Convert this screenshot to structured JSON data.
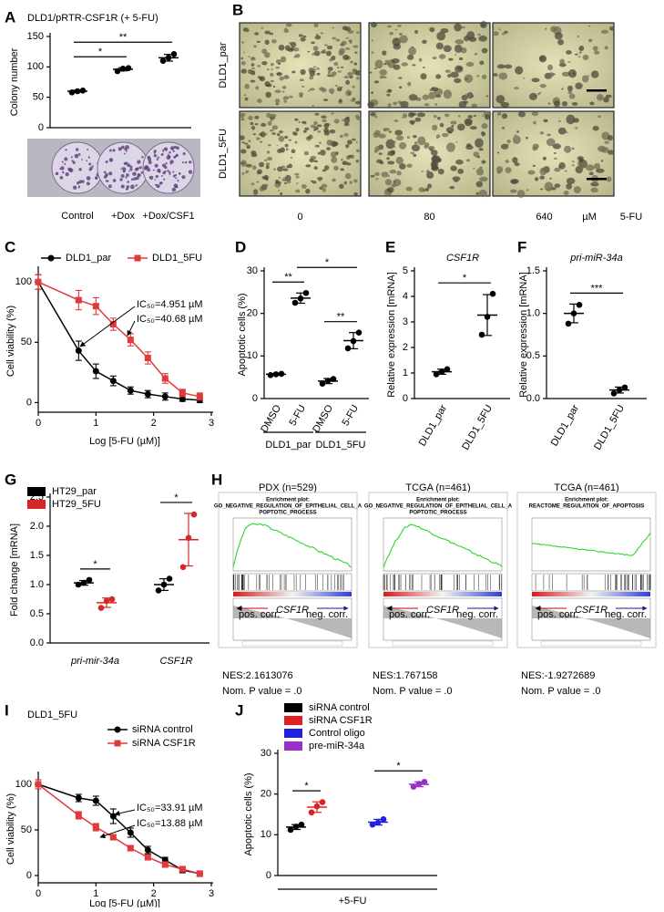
{
  "chart_data": [
    {
      "panel": "A",
      "type": "dot",
      "title": "DLD1/pRTR-CSF1R (+ 5-FU)",
      "y_label": "Colony number",
      "ylim": [
        0,
        150
      ],
      "yticks": [
        0,
        50,
        100,
        150
      ],
      "categories": [
        "Control",
        "+Dox",
        "+Dox/CSF1"
      ],
      "series": [
        {
          "color": "#000000",
          "values": [
            [
              58,
              60,
              61
            ],
            [
              93,
              97,
              98
            ],
            [
              110,
              115,
              121
            ]
          ],
          "means": [
            60,
            96,
            115
          ],
          "errors": [
            1.5,
            2.6,
            5.5
          ]
        }
      ],
      "significance": [
        {
          "label": "*",
          "between": [
            0,
            1
          ]
        },
        {
          "label": "**",
          "between": [
            0,
            2
          ]
        }
      ]
    },
    {
      "panel": "B",
      "type": "image",
      "rows": [
        "DLD1_par",
        "DLD1_5FU"
      ],
      "columns": [
        "0",
        "80",
        "640"
      ],
      "unit": "µM",
      "treatment": "5-FU"
    },
    {
      "panel": "C",
      "type": "line",
      "x_label": "Log [5-FU (µM)]",
      "y_label": "Cell viability (%)",
      "xlim": [
        0,
        3
      ],
      "xticks": [
        0,
        1,
        2,
        3
      ],
      "ylim": [
        -8,
        110
      ],
      "yticks": [
        0,
        50,
        100
      ],
      "x": [
        0,
        0.7,
        1,
        1.3,
        1.6,
        1.9,
        2.2,
        2.5,
        2.8
      ],
      "series": [
        {
          "name": "DLD1_par",
          "color": "#000000",
          "marker": "circle",
          "values": [
            100,
            43,
            26,
            18,
            10,
            7,
            5,
            3,
            2
          ],
          "errors": [
            6,
            8,
            6,
            4,
            3,
            3,
            3,
            2,
            2
          ]
        },
        {
          "name": "DLD1_5FU",
          "color": "#e03a3a",
          "marker": "square",
          "values": [
            100,
            85,
            80,
            65,
            52,
            37,
            20,
            8,
            5
          ],
          "errors": [
            6,
            8,
            7,
            5,
            5,
            5,
            4,
            3,
            3
          ]
        }
      ],
      "annotations": [
        "IC₅₀=4.951 µM",
        "IC₅₀=40.68 µM"
      ]
    },
    {
      "panel": "D",
      "type": "dot",
      "y_label": "Apoptotic cells (%)",
      "ylim": [
        0,
        30
      ],
      "yticks": [
        0,
        10,
        20,
        30
      ],
      "categories": [
        "DMSO",
        "5-FU",
        "DMSO",
        "5-FU"
      ],
      "groups": [
        "DLD1_par",
        "DLD1_5FU"
      ],
      "rotate_labels": true,
      "series": [
        {
          "color": "#000000",
          "values": [
            [
              5.5,
              5.7,
              5.8
            ],
            [
              22.5,
              23.5,
              24.8
            ],
            [
              3.5,
              4.2,
              4.6
            ],
            [
              11.8,
              13.5,
              15.5
            ]
          ],
          "means": [
            5.7,
            23.6,
            4.1,
            13.6
          ],
          "errors": [
            0.2,
            1.2,
            0.6,
            1.9
          ]
        }
      ],
      "significance": [
        {
          "label": "**",
          "between": [
            0,
            1
          ]
        },
        {
          "label": "**",
          "between": [
            2,
            3
          ]
        },
        {
          "label": "*",
          "between": [
            1,
            3
          ]
        }
      ]
    },
    {
      "panel": "E",
      "type": "dot",
      "title": "CSF1R",
      "y_label": "Relative expression [mRNA]",
      "ylim": [
        0,
        5
      ],
      "yticks": [
        0,
        1,
        2,
        3,
        4,
        5
      ],
      "categories": [
        "DLD1_par",
        "DLD1_5FU"
      ],
      "rotate_labels": true,
      "series": [
        {
          "color": "#000000",
          "values": [
            [
              0.95,
              1.05,
              1.15
            ],
            [
              2.5,
              3.2,
              4.1
            ]
          ],
          "means": [
            1.05,
            3.27
          ],
          "errors": [
            0.1,
            0.8
          ]
        }
      ],
      "significance": [
        {
          "label": "*",
          "between": [
            0,
            1
          ]
        }
      ]
    },
    {
      "panel": "F",
      "type": "dot",
      "title": "pri-miR-34a",
      "y_label": "Relative expression [mRNA]",
      "ylim": [
        0,
        1.5
      ],
      "yticks": [
        {
          "value": 0,
          "label": "0.0"
        },
        0.5,
        {
          "value": 1,
          "label": "1.0"
        },
        1.5
      ],
      "categories": [
        "DLD1_par",
        "DLD1_5FU"
      ],
      "rotate_labels": true,
      "series": [
        {
          "color": "#000000",
          "values": [
            [
              0.88,
              1.0,
              1.1
            ],
            [
              0.06,
              0.1,
              0.13
            ]
          ],
          "means": [
            1.0,
            0.1
          ],
          "errors": [
            0.11,
            0.035
          ]
        }
      ],
      "significance": [
        {
          "label": "***",
          "between": [
            0,
            1
          ]
        }
      ]
    },
    {
      "panel": "G",
      "type": "dot",
      "y_label": "Fold change [mRNA]",
      "ylim": [
        0,
        2.5
      ],
      "yticks": [
        {
          "value": 0,
          "label": "0.0"
        },
        0.5,
        {
          "value": 1,
          "label": "1.0"
        },
        1.5,
        {
          "value": 2,
          "label": "2.0"
        },
        2.5
      ],
      "categories": [
        "pri-mir-34a",
        "CSF1R"
      ],
      "series": [
        {
          "name": "HT29_par",
          "color": "#000000",
          "values": [
            [
              1.0,
              1.03,
              1.08
            ],
            [
              0.9,
              1.0,
              1.1
            ]
          ],
          "means": [
            1.03,
            1.0
          ],
          "errors": [
            0.04,
            0.1
          ]
        },
        {
          "name": "HT29_5FU",
          "color": "#d62728",
          "values": [
            [
              0.6,
              0.72,
              0.75
            ],
            [
              1.3,
              1.8,
              2.2
            ]
          ],
          "means": [
            0.69,
            1.77
          ],
          "errors": [
            0.08,
            0.45
          ]
        }
      ],
      "significance": [
        {
          "label": "*",
          "between": [
            0,
            1
          ]
        },
        {
          "label": "*",
          "between": [
            2,
            3
          ]
        }
      ]
    },
    {
      "panel": "H",
      "type": "gsea",
      "plots": [
        {
          "title": "PDX (n=529)",
          "plot_title": [
            "Enrichment plot:",
            "GO_NEGATIVE_REGULATION_OF_EPITHELIAL_CELL_A",
            "POPTOTIC_PROCESS"
          ],
          "pos": "pos. corr.",
          "gene": "CSF1R",
          "neg": "neg. corr.",
          "nes": "NES:2.1613076",
          "pval": "Nom. P value = .0"
        },
        {
          "title": "TCGA (n=461)",
          "plot_title": [
            "Enrichment plot:",
            "GO_NEGATIVE_REGULATION_OF_EPITHELIAL_CELL_A",
            "POPTOTIC_PROCESS"
          ],
          "pos": "pos. corr.",
          "gene": "CSF1R",
          "neg": "neg. corr.",
          "nes": "NES:1.767158",
          "pval": "Nom. P value = .0"
        },
        {
          "title": "TCGA (n=461)",
          "plot_title": [
            "Enrichment plot:",
            "REACTOME_REGULATION_OF_APOPTOSIS"
          ],
          "pos": "pos. corr.",
          "gene": "CSF1R",
          "neg": "neg. corr.",
          "nes": "NES:-1.9272689",
          "pval": "Nom. P value = .0"
        }
      ]
    },
    {
      "panel": "I",
      "type": "line",
      "subtitle": "DLD1_5FU",
      "x_label": "Log [5-FU (µM)]",
      "y_label": "Cell viability (%)",
      "xlim": [
        0,
        3
      ],
      "xticks": [
        0,
        1,
        2,
        3
      ],
      "ylim": [
        -8,
        110
      ],
      "yticks": [
        0,
        50,
        100
      ],
      "x": [
        0,
        0.7,
        1,
        1.3,
        1.6,
        1.9,
        2.2,
        2.5,
        2.8
      ],
      "series": [
        {
          "name": "siRNA control",
          "color": "#000000",
          "marker": "circle",
          "values": [
            100,
            85,
            82,
            65,
            47,
            28,
            17,
            6,
            2
          ],
          "errors": [
            5,
            4,
            5,
            8,
            5,
            4,
            3,
            3,
            3
          ]
        },
        {
          "name": "siRNA CSF1R",
          "color": "#e03a3a",
          "marker": "square",
          "values": [
            100,
            66,
            53,
            42,
            30,
            20,
            12,
            7,
            2
          ],
          "errors": [
            5,
            4,
            4,
            3,
            3,
            3,
            3,
            3,
            3
          ]
        }
      ],
      "annotations": [
        "IC₅₀=33.91 µM",
        "IC₅₀=13.88 µM"
      ]
    },
    {
      "panel": "J",
      "type": "dot",
      "y_label": "Apoptotic cells (%)",
      "ylim": [
        0,
        30
      ],
      "yticks": [
        0,
        10,
        20,
        30
      ],
      "categories": [
        "+5-FU"
      ],
      "series": [
        {
          "name": "siRNA control",
          "color": "#000000",
          "values": [
            [
              11.2,
              12,
              12.5
            ]
          ],
          "means": [
            11.9
          ],
          "errors": [
            0.6
          ]
        },
        {
          "name": "siRNA CSF1R",
          "color": "#e02020",
          "values": [
            [
              15.5,
              17,
              18
            ]
          ],
          "means": [
            16.8
          ],
          "errors": [
            1.3
          ]
        },
        {
          "name": "Control oligo",
          "color": "#2020e0",
          "values": [
            [
              12.5,
              13,
              13.8
            ]
          ],
          "means": [
            13.1
          ],
          "errors": [
            0.7
          ]
        },
        {
          "name": "pre-miR-34a",
          "color": "#9b30c8",
          "values": [
            [
              21.8,
              22.5,
              23
            ]
          ],
          "means": [
            22.4
          ],
          "errors": [
            0.6
          ]
        }
      ],
      "significance": [
        {
          "label": "*",
          "between": [
            0,
            1
          ]
        },
        {
          "label": "*",
          "between": [
            2,
            3
          ]
        }
      ]
    }
  ]
}
